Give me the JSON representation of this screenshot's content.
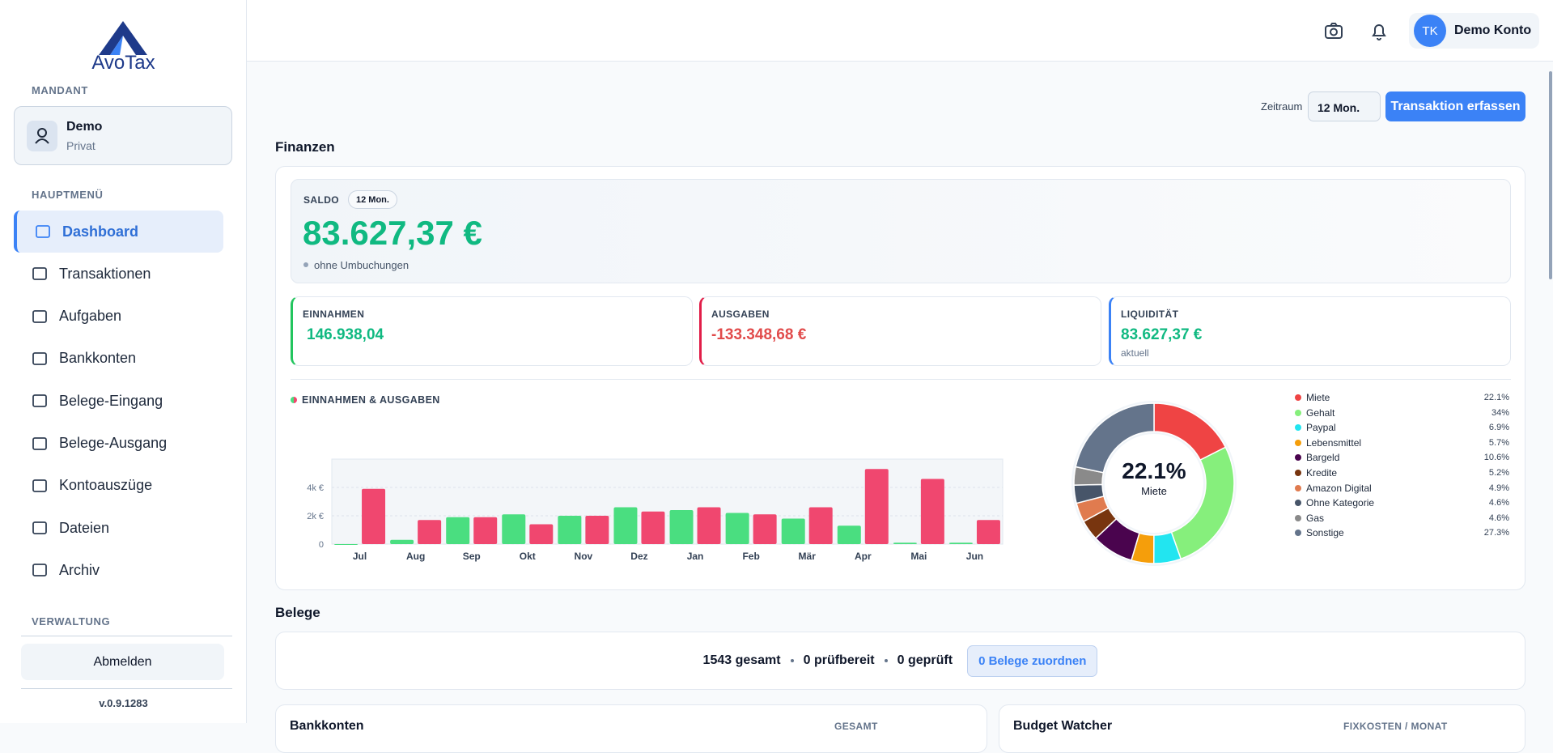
{
  "sidebar": {
    "logo": "AvoTax",
    "mandant_label": "MANDANT",
    "mandant": {
      "name": "Demo",
      "type": "Privat"
    },
    "menu_label": "HAUPTMENÜ",
    "nav": [
      "Dashboard",
      "Transaktionen",
      "Aufgaben",
      "Bankkonten",
      "Belege-Eingang",
      "Belege-Ausgang",
      "Kontoauszüge",
      "Dateien",
      "Archiv"
    ],
    "admin_label": "VERWALTUNG",
    "logout": "Abmelden",
    "version": "v.0.9.1283"
  },
  "header": {
    "initials": "TK",
    "user": "Demo Konto"
  },
  "toolbar": {
    "period_label": "Zeitraum",
    "period": "12 Mon.",
    "action": "Transaktion erfassen"
  },
  "finanzen": {
    "title": "Finanzen",
    "saldo": {
      "label": "SALDO",
      "badge": "12 Mon.",
      "value": "83.627,37 €",
      "note": "ohne Umbuchungen"
    },
    "kpis": [
      {
        "label": "EINNAHMEN",
        "value": "146.938,04"
      },
      {
        "label": "AUSGABEN",
        "value": "-133.348,68 €"
      },
      {
        "label": "LIQUIDITÄT",
        "value": "83.627,37 €",
        "note": "aktuell"
      }
    ]
  },
  "chart_data": [
    {
      "type": "bar",
      "title": "EINNAHMEN & AUSGABEN",
      "categories": [
        "Jul",
        "Aug",
        "Sep",
        "Okt",
        "Nov",
        "Dez",
        "Jan",
        "Feb",
        "Mär",
        "Apr",
        "Mai",
        "Jun"
      ],
      "series": [
        {
          "color": "#4ade80",
          "values": [
            0,
            300,
            1900,
            2100,
            2000,
            2600,
            2400,
            2200,
            1800,
            1300,
            100,
            100
          ]
        },
        {
          "color": "#f0476f",
          "values": [
            3900,
            1700,
            1900,
            1400,
            2000,
            2300,
            2600,
            2100,
            2600,
            5300,
            4600,
            1700
          ]
        }
      ],
      "ylim": [
        0,
        6000
      ],
      "yticks": [
        0,
        {
          "value": 2000,
          "label": "2k €"
        },
        {
          "value": 4000,
          "label": "4k €"
        }
      ],
      "grid": true
    },
    {
      "type": "pie",
      "categories": [
        "Miete",
        "Gehalt",
        "Paypal",
        "Lebensmittel",
        "Bargeld",
        "Kredite",
        "Amazon Digital",
        "Ohne Kategorie",
        "Gas",
        "Sonstige"
      ],
      "values": [
        22.1,
        34,
        6.9,
        5.7,
        10.6,
        5.2,
        4.9,
        4.6,
        4.6,
        27.3
      ],
      "value_labels": [
        "22.1%",
        "34%",
        "6.9%",
        "5.7%",
        "10.6%",
        "5.2%",
        "4.9%",
        "4.6%",
        "4.6%",
        "27.3%"
      ],
      "colors": [
        "#ef4444",
        "#86ef7c",
        "#22e5f0",
        "#f59e0b",
        "#4a044e",
        "#78350f",
        "#e07b4f",
        "#475569",
        "#8a8a8a",
        "#64748b"
      ]
    }
  ],
  "belege": {
    "title": "Belege",
    "stats": [
      "1543 gesamt",
      "0 prüfbereit",
      "0 geprüft"
    ],
    "action": "0 Belege zuordnen"
  },
  "bottom": {
    "left": {
      "title": "Bankkonten",
      "label": "GESAMT"
    },
    "right": {
      "title": "Budget Watcher",
      "label": "FIXKOSTEN / MONAT"
    }
  }
}
